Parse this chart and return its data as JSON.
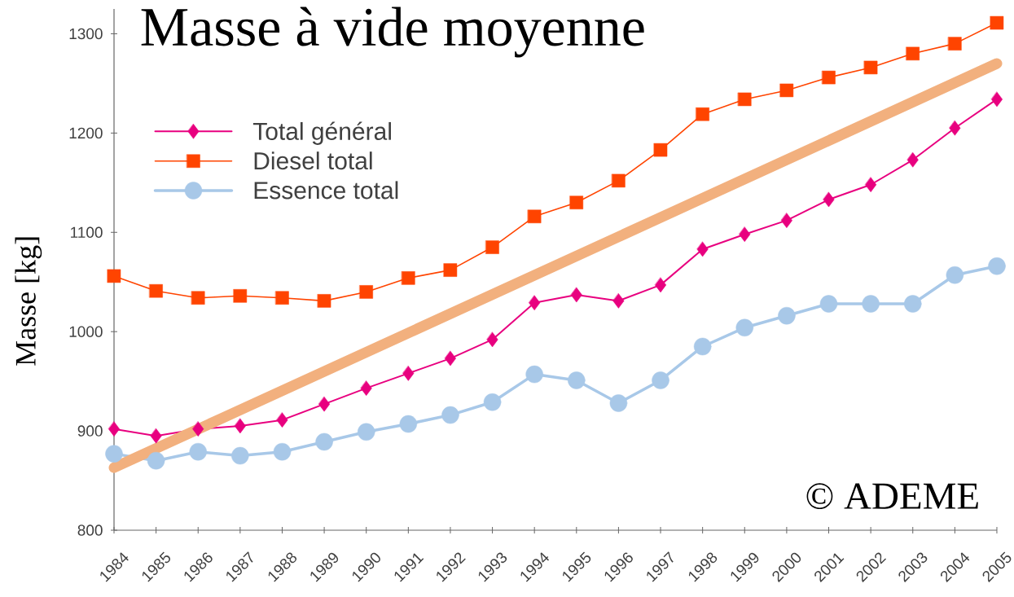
{
  "chart_data": {
    "type": "line",
    "title": "Masse à vide moyenne",
    "ylabel": "Masse [kg]",
    "annotations": [
      "© ADEME"
    ],
    "x": [
      1984,
      1985,
      1986,
      1987,
      1988,
      1989,
      1990,
      1991,
      1992,
      1993,
      1994,
      1995,
      1996,
      1997,
      1998,
      1999,
      2000,
      2001,
      2002,
      2003,
      2004,
      2005
    ],
    "series": [
      {
        "name": "Total général",
        "color": "#e8007f",
        "marker": "diamond",
        "values": [
          902,
          895,
          902,
          905,
          911,
          927,
          943,
          958,
          973,
          992,
          1029,
          1037,
          1031,
          1047,
          1083,
          1098,
          1112,
          1133,
          1148,
          1173,
          1205,
          1234
        ]
      },
      {
        "name": "Diesel total",
        "color": "#ff4400",
        "marker": "square",
        "values": [
          1056,
          1041,
          1034,
          1036,
          1034,
          1031,
          1040,
          1054,
          1062,
          1085,
          1116,
          1130,
          1152,
          1183,
          1219,
          1234,
          1243,
          1256,
          1266,
          1280,
          1290,
          1311
        ]
      },
      {
        "name": "Essence total",
        "color": "#a8c8e8",
        "marker": "circle",
        "values": [
          877,
          870,
          879,
          875,
          879,
          889,
          899,
          907,
          916,
          929,
          957,
          951,
          928,
          951,
          985,
          1004,
          1016,
          1028,
          1028,
          1028,
          1057,
          1066
        ]
      },
      {
        "type": "line",
        "x": [
          1984,
          2005
        ],
        "color": "#f2b07e",
        "marker": "none",
        "values": [
          863,
          1270
        ]
      }
    ],
    "xlim": [
      1984,
      2005
    ],
    "xticks": [
      1984,
      1985,
      1986,
      1987,
      1988,
      1989,
      1990,
      1991,
      1992,
      1993,
      1994,
      1995,
      1996,
      1997,
      1998,
      1999,
      2000,
      2001,
      2002,
      2003,
      2004,
      2005
    ],
    "ylim": [
      800,
      1325
    ],
    "yticks": [
      800,
      900,
      1000,
      1100,
      1200,
      1300
    ],
    "legend": "top left",
    "line_style": "solid"
  }
}
